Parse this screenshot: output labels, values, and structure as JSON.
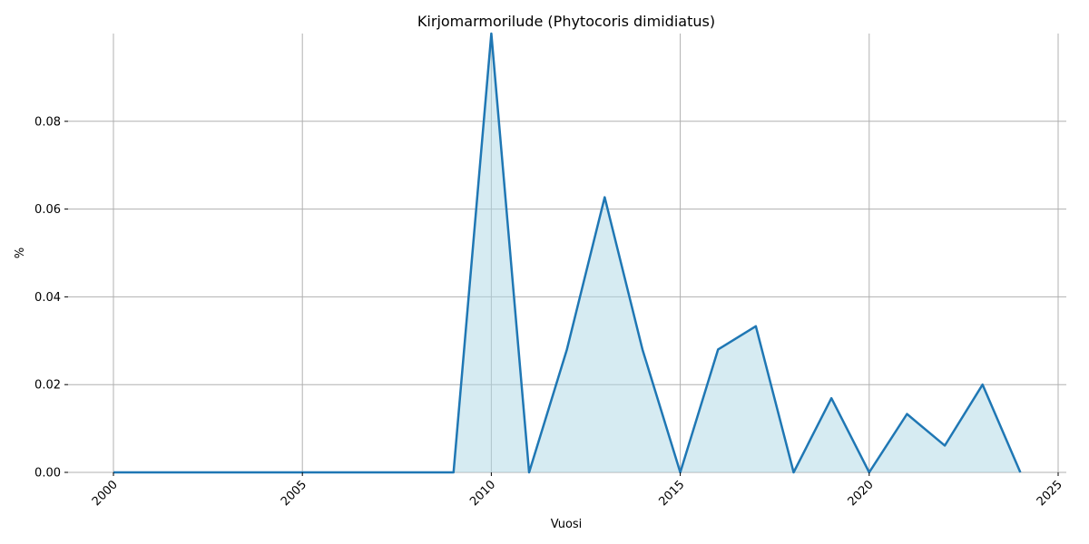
{
  "chart_data": {
    "type": "area",
    "title": "Kirjomarmorilude (Phytocoris dimidiatus)",
    "xlabel": "Vuosi",
    "ylabel": "%",
    "xlim": [
      2000,
      2025
    ],
    "ylim": [
      0,
      0.1
    ],
    "x_ticks": [
      2000,
      2005,
      2010,
      2015,
      2020,
      2025
    ],
    "y_ticks": [
      0.0,
      0.02,
      0.04,
      0.06,
      0.08
    ],
    "y_tick_labels": [
      "0.00",
      "0.02",
      "0.04",
      "0.06",
      "0.08"
    ],
    "grid": true,
    "line_color": "#1f77b4",
    "fill_color": "#add8e6",
    "x": [
      2000,
      2001,
      2002,
      2003,
      2004,
      2005,
      2006,
      2007,
      2008,
      2009,
      2010,
      2011,
      2012,
      2013,
      2014,
      2015,
      2016,
      2017,
      2018,
      2019,
      2020,
      2021,
      2022,
      2023,
      2024
    ],
    "values": [
      0,
      0,
      0,
      0,
      0,
      0,
      0,
      0,
      0,
      0,
      0.1,
      0,
      0.028,
      0.0627,
      0.028,
      0,
      0.028,
      0.0333,
      0,
      0.0169,
      0,
      0.0133,
      0.0061,
      0.02,
      0
    ]
  }
}
